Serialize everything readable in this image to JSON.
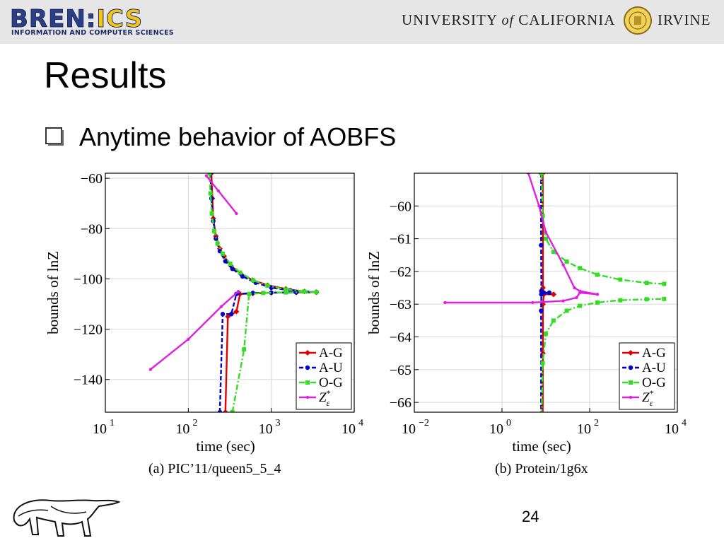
{
  "header": {
    "bren_wordmark_left": "BREN",
    "bren_wordmark_sep": ":",
    "bren_wordmark_right": "ICS",
    "bren_subtitle": "INFORMATION AND COMPUTER SCIENCES",
    "uci_left": "UNIVERSITY",
    "uci_of": "of",
    "uci_mid": "CALIFORNIA",
    "uci_right": "IRVINE"
  },
  "slide": {
    "title": "Results",
    "bullet": "Anytime behavior of AOBFS",
    "page_number": "24"
  },
  "colors": {
    "A-G": "#e00000",
    "A-U": "#0000cc",
    "O-G": "#33dd22",
    "Z": "#e020e0",
    "header_bg": "#e6e6e6"
  },
  "chart_data": [
    {
      "type": "line",
      "caption": "(a) PIC’11/queen5_5_4",
      "xlabel": "time (sec)",
      "ylabel": "bounds of lnZ",
      "xscale": "log",
      "xlim": [
        10,
        10000
      ],
      "ylim": [
        -153,
        -58
      ],
      "xticks": [
        {
          "v": 10,
          "label": "10",
          "exp": "1"
        },
        {
          "v": 100,
          "label": "10",
          "exp": "2"
        },
        {
          "v": 1000,
          "label": "10",
          "exp": "3"
        },
        {
          "v": 10000,
          "label": "10",
          "exp": "4"
        }
      ],
      "yticks": [
        {
          "v": -60,
          "label": "−60"
        },
        {
          "v": -80,
          "label": "−80"
        },
        {
          "v": -100,
          "label": "−100"
        },
        {
          "v": -120,
          "label": "−120"
        },
        {
          "v": -140,
          "label": "−140"
        }
      ],
      "grid": true,
      "legend_position": "bottom-right",
      "legend": [
        {
          "key": "A-G",
          "label": "A-G"
        },
        {
          "key": "A-U",
          "label": "A-U"
        },
        {
          "key": "O-G",
          "label": "O-G"
        },
        {
          "key": "Z",
          "label": "Z",
          "sup": "*",
          "sub": "ε"
        }
      ],
      "series": [
        {
          "key": "A-G",
          "style": "solid",
          "marker": "diamond",
          "part": "upper",
          "points": [
            [
              190,
              -58
            ],
            [
              195,
              -68
            ],
            [
              200,
              -76
            ],
            [
              215,
              -83
            ],
            [
              240,
              -88
            ],
            [
              270,
              -91
            ],
            [
              330,
              -95
            ],
            [
              430,
              -98
            ],
            [
              600,
              -100.5
            ],
            [
              900,
              -102.5
            ],
            [
              1500,
              -104
            ],
            [
              2500,
              -105
            ],
            [
              3500,
              -105.3
            ]
          ]
        },
        {
          "key": "A-G",
          "style": "solid",
          "marker": "diamond",
          "part": "lower",
          "points": [
            [
              280,
              -153
            ],
            [
              300,
              -115
            ],
            [
              380,
              -113
            ],
            [
              420,
              -106
            ],
            [
              600,
              -105.8
            ],
            [
              1000,
              -105.5
            ],
            [
              2000,
              -105.4
            ],
            [
              3500,
              -105.3
            ]
          ]
        },
        {
          "key": "A-U",
          "style": "dashed",
          "marker": "circle",
          "part": "upper",
          "points": [
            [
              185,
              -58
            ],
            [
              190,
              -68
            ],
            [
              200,
              -77
            ],
            [
              215,
              -84
            ],
            [
              240,
              -89
            ],
            [
              280,
              -93
            ],
            [
              340,
              -96
            ],
            [
              450,
              -99
            ],
            [
              650,
              -101.5
            ],
            [
              1000,
              -103.5
            ],
            [
              1700,
              -104.6
            ],
            [
              3500,
              -105.3
            ]
          ]
        },
        {
          "key": "A-U",
          "style": "dashed",
          "marker": "circle",
          "part": "lower",
          "points": [
            [
              240,
              -153
            ],
            [
              260,
              -114
            ],
            [
              330,
              -114
            ],
            [
              380,
              -106
            ],
            [
              600,
              -105.6
            ],
            [
              1000,
              -105.5
            ],
            [
              2000,
              -105.4
            ],
            [
              3500,
              -105.3
            ]
          ]
        },
        {
          "key": "O-G",
          "style": "dashdot",
          "marker": "square",
          "part": "upper",
          "points": [
            [
              180,
              -58
            ],
            [
              185,
              -66
            ],
            [
              192,
              -74
            ],
            [
              205,
              -81
            ],
            [
              225,
              -86
            ],
            [
              260,
              -90
            ],
            [
              320,
              -94
            ],
            [
              420,
              -97.5
            ],
            [
              600,
              -100.5
            ],
            [
              900,
              -102.7
            ],
            [
              1500,
              -104.2
            ],
            [
              2500,
              -105
            ],
            [
              3500,
              -105.3
            ]
          ]
        },
        {
          "key": "O-G",
          "style": "dashdot",
          "marker": "square",
          "part": "lower",
          "points": [
            [
              340,
              -153
            ],
            [
              470,
              -128
            ],
            [
              540,
              -106
            ],
            [
              800,
              -105.6
            ],
            [
              1500,
              -105.4
            ],
            [
              3500,
              -105.3
            ]
          ]
        },
        {
          "key": "Z",
          "style": "solid",
          "marker": "dot",
          "part": "upper",
          "points": [
            [
              165,
              -59
            ],
            [
              230,
              -65
            ],
            [
              380,
              -74
            ]
          ]
        },
        {
          "key": "Z",
          "style": "solid",
          "marker": "dot",
          "part": "lower",
          "points": [
            [
              35,
              -136
            ],
            [
              100,
              -124
            ],
            [
              250,
              -111
            ],
            [
              400,
              -105
            ]
          ]
        }
      ]
    },
    {
      "type": "line",
      "caption": "(b) Protein/1g6x",
      "xlabel": "time (sec)",
      "ylabel": "bounds of lnZ",
      "xscale": "log",
      "xlim": [
        0.01,
        10000
      ],
      "ylim": [
        -66.3,
        -59
      ],
      "xticks": [
        {
          "v": 0.01,
          "label": "10",
          "exp": "−2"
        },
        {
          "v": 1,
          "label": "10",
          "exp": "0"
        },
        {
          "v": 100,
          "label": "10",
          "exp": "2"
        },
        {
          "v": 10000,
          "label": "10",
          "exp": "4"
        }
      ],
      "yticks": [
        {
          "v": -60,
          "label": "−60"
        },
        {
          "v": -61,
          "label": "−61"
        },
        {
          "v": -62,
          "label": "−62"
        },
        {
          "v": -63,
          "label": "−63"
        },
        {
          "v": -64,
          "label": "−64"
        },
        {
          "v": -65,
          "label": "−65"
        },
        {
          "v": -66,
          "label": "−66"
        }
      ],
      "grid": true,
      "legend_position": "bottom-right",
      "legend": [
        {
          "key": "A-G",
          "label": "A-G"
        },
        {
          "key": "A-U",
          "label": "A-U"
        },
        {
          "key": "O-G",
          "label": "O-G"
        },
        {
          "key": "Z",
          "label": "Z",
          "sup": "*",
          "sub": "ε"
        }
      ],
      "series": [
        {
          "key": "A-G",
          "style": "solid",
          "marker": "diamond",
          "part": "upper",
          "points": [
            [
              8.5,
              -59
            ],
            [
              8.6,
              -61
            ],
            [
              8.6,
              -62.5
            ],
            [
              9,
              -62.7
            ],
            [
              15,
              -62.7
            ]
          ]
        },
        {
          "key": "A-G",
          "style": "solid",
          "marker": "diamond",
          "part": "lower",
          "points": [
            [
              8.5,
              -66.4
            ],
            [
              8.6,
              -64.5
            ],
            [
              8.6,
              -63
            ],
            [
              9,
              -62.7
            ],
            [
              15,
              -62.7
            ]
          ]
        },
        {
          "key": "A-U",
          "style": "dashed",
          "marker": "circle",
          "part": "upper",
          "points": [
            [
              7.8,
              -59
            ],
            [
              7.8,
              -61.2
            ],
            [
              7.9,
              -62.6
            ],
            [
              9,
              -62.65
            ],
            [
              12,
              -62.65
            ]
          ]
        },
        {
          "key": "A-U",
          "style": "dashed",
          "marker": "circle",
          "part": "lower",
          "points": [
            [
              7.8,
              -66.4
            ],
            [
              7.8,
              -63.2
            ],
            [
              7.9,
              -62.7
            ],
            [
              9,
              -62.65
            ],
            [
              12,
              -62.65
            ]
          ]
        },
        {
          "key": "O-G",
          "style": "dashdot",
          "marker": "square",
          "part": "upper",
          "points": [
            [
              8,
              -59
            ],
            [
              8.5,
              -60.3
            ],
            [
              10,
              -61
            ],
            [
              15,
              -61.4
            ],
            [
              30,
              -61.7
            ],
            [
              60,
              -61.9
            ],
            [
              150,
              -62.1
            ],
            [
              500,
              -62.25
            ],
            [
              2000,
              -62.35
            ],
            [
              5000,
              -62.38
            ]
          ]
        },
        {
          "key": "O-G",
          "style": "dashdot",
          "marker": "square",
          "part": "lower",
          "points": [
            [
              8,
              -66.4
            ],
            [
              8.5,
              -64.8
            ],
            [
              10,
              -63.9
            ],
            [
              15,
              -63.5
            ],
            [
              30,
              -63.2
            ],
            [
              60,
              -63.05
            ],
            [
              150,
              -62.95
            ],
            [
              500,
              -62.88
            ],
            [
              2000,
              -62.85
            ],
            [
              5000,
              -62.84
            ]
          ]
        },
        {
          "key": "Z",
          "style": "solid",
          "marker": "dot",
          "part": "upper",
          "points": [
            [
              4,
              -59
            ],
            [
              7,
              -60
            ],
            [
              10,
              -60.8
            ],
            [
              25,
              -61.8
            ],
            [
              45,
              -62.5
            ],
            [
              60,
              -62.6
            ],
            [
              150,
              -62.7
            ]
          ]
        },
        {
          "key": "Z",
          "style": "solid",
          "marker": "dot",
          "part": "lower",
          "points": [
            [
              0.05,
              -62.95
            ],
            [
              5,
              -62.95
            ],
            [
              25,
              -62.9
            ],
            [
              50,
              -62.8
            ],
            [
              60,
              -62.65
            ],
            [
              150,
              -62.7
            ]
          ]
        }
      ]
    }
  ]
}
